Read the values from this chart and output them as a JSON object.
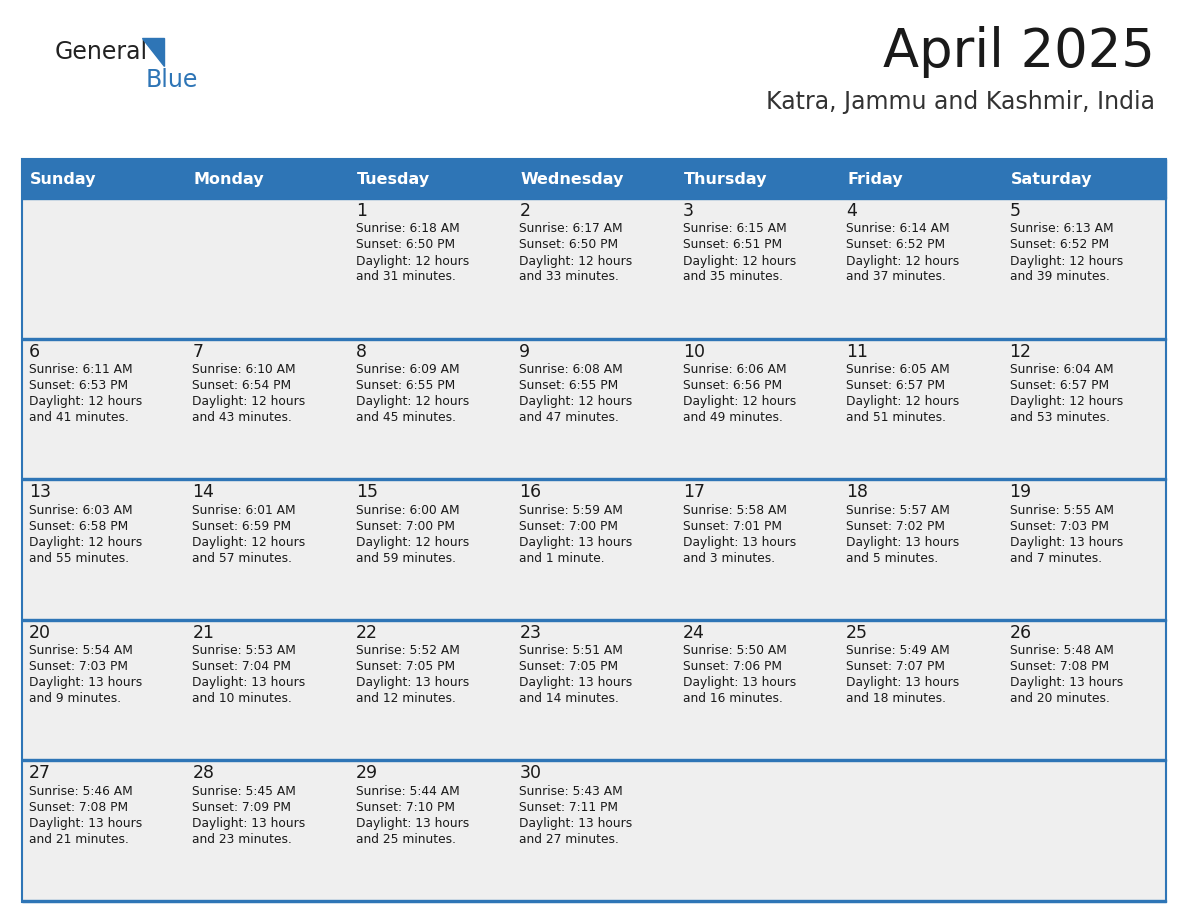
{
  "title": "April 2025",
  "subtitle": "Katra, Jammu and Kashmir, India",
  "header_color": "#2E75B6",
  "header_text_color": "#FFFFFF",
  "cell_bg_color": "#EFEFEF",
  "line_color": "#2E75B6",
  "text_color": "#1a1a1a",
  "days_of_week": [
    "Sunday",
    "Monday",
    "Tuesday",
    "Wednesday",
    "Thursday",
    "Friday",
    "Saturday"
  ],
  "weeks": [
    [
      {
        "day": "",
        "sunrise": "",
        "sunset": "",
        "daylight": ""
      },
      {
        "day": "",
        "sunrise": "",
        "sunset": "",
        "daylight": ""
      },
      {
        "day": "1",
        "sunrise": "Sunrise: 6:18 AM",
        "sunset": "Sunset: 6:50 PM",
        "daylight": "Daylight: 12 hours\nand 31 minutes."
      },
      {
        "day": "2",
        "sunrise": "Sunrise: 6:17 AM",
        "sunset": "Sunset: 6:50 PM",
        "daylight": "Daylight: 12 hours\nand 33 minutes."
      },
      {
        "day": "3",
        "sunrise": "Sunrise: 6:15 AM",
        "sunset": "Sunset: 6:51 PM",
        "daylight": "Daylight: 12 hours\nand 35 minutes."
      },
      {
        "day": "4",
        "sunrise": "Sunrise: 6:14 AM",
        "sunset": "Sunset: 6:52 PM",
        "daylight": "Daylight: 12 hours\nand 37 minutes."
      },
      {
        "day": "5",
        "sunrise": "Sunrise: 6:13 AM",
        "sunset": "Sunset: 6:52 PM",
        "daylight": "Daylight: 12 hours\nand 39 minutes."
      }
    ],
    [
      {
        "day": "6",
        "sunrise": "Sunrise: 6:11 AM",
        "sunset": "Sunset: 6:53 PM",
        "daylight": "Daylight: 12 hours\nand 41 minutes."
      },
      {
        "day": "7",
        "sunrise": "Sunrise: 6:10 AM",
        "sunset": "Sunset: 6:54 PM",
        "daylight": "Daylight: 12 hours\nand 43 minutes."
      },
      {
        "day": "8",
        "sunrise": "Sunrise: 6:09 AM",
        "sunset": "Sunset: 6:55 PM",
        "daylight": "Daylight: 12 hours\nand 45 minutes."
      },
      {
        "day": "9",
        "sunrise": "Sunrise: 6:08 AM",
        "sunset": "Sunset: 6:55 PM",
        "daylight": "Daylight: 12 hours\nand 47 minutes."
      },
      {
        "day": "10",
        "sunrise": "Sunrise: 6:06 AM",
        "sunset": "Sunset: 6:56 PM",
        "daylight": "Daylight: 12 hours\nand 49 minutes."
      },
      {
        "day": "11",
        "sunrise": "Sunrise: 6:05 AM",
        "sunset": "Sunset: 6:57 PM",
        "daylight": "Daylight: 12 hours\nand 51 minutes."
      },
      {
        "day": "12",
        "sunrise": "Sunrise: 6:04 AM",
        "sunset": "Sunset: 6:57 PM",
        "daylight": "Daylight: 12 hours\nand 53 minutes."
      }
    ],
    [
      {
        "day": "13",
        "sunrise": "Sunrise: 6:03 AM",
        "sunset": "Sunset: 6:58 PM",
        "daylight": "Daylight: 12 hours\nand 55 minutes."
      },
      {
        "day": "14",
        "sunrise": "Sunrise: 6:01 AM",
        "sunset": "Sunset: 6:59 PM",
        "daylight": "Daylight: 12 hours\nand 57 minutes."
      },
      {
        "day": "15",
        "sunrise": "Sunrise: 6:00 AM",
        "sunset": "Sunset: 7:00 PM",
        "daylight": "Daylight: 12 hours\nand 59 minutes."
      },
      {
        "day": "16",
        "sunrise": "Sunrise: 5:59 AM",
        "sunset": "Sunset: 7:00 PM",
        "daylight": "Daylight: 13 hours\nand 1 minute."
      },
      {
        "day": "17",
        "sunrise": "Sunrise: 5:58 AM",
        "sunset": "Sunset: 7:01 PM",
        "daylight": "Daylight: 13 hours\nand 3 minutes."
      },
      {
        "day": "18",
        "sunrise": "Sunrise: 5:57 AM",
        "sunset": "Sunset: 7:02 PM",
        "daylight": "Daylight: 13 hours\nand 5 minutes."
      },
      {
        "day": "19",
        "sunrise": "Sunrise: 5:55 AM",
        "sunset": "Sunset: 7:03 PM",
        "daylight": "Daylight: 13 hours\nand 7 minutes."
      }
    ],
    [
      {
        "day": "20",
        "sunrise": "Sunrise: 5:54 AM",
        "sunset": "Sunset: 7:03 PM",
        "daylight": "Daylight: 13 hours\nand 9 minutes."
      },
      {
        "day": "21",
        "sunrise": "Sunrise: 5:53 AM",
        "sunset": "Sunset: 7:04 PM",
        "daylight": "Daylight: 13 hours\nand 10 minutes."
      },
      {
        "day": "22",
        "sunrise": "Sunrise: 5:52 AM",
        "sunset": "Sunset: 7:05 PM",
        "daylight": "Daylight: 13 hours\nand 12 minutes."
      },
      {
        "day": "23",
        "sunrise": "Sunrise: 5:51 AM",
        "sunset": "Sunset: 7:05 PM",
        "daylight": "Daylight: 13 hours\nand 14 minutes."
      },
      {
        "day": "24",
        "sunrise": "Sunrise: 5:50 AM",
        "sunset": "Sunset: 7:06 PM",
        "daylight": "Daylight: 13 hours\nand 16 minutes."
      },
      {
        "day": "25",
        "sunrise": "Sunrise: 5:49 AM",
        "sunset": "Sunset: 7:07 PM",
        "daylight": "Daylight: 13 hours\nand 18 minutes."
      },
      {
        "day": "26",
        "sunrise": "Sunrise: 5:48 AM",
        "sunset": "Sunset: 7:08 PM",
        "daylight": "Daylight: 13 hours\nand 20 minutes."
      }
    ],
    [
      {
        "day": "27",
        "sunrise": "Sunrise: 5:46 AM",
        "sunset": "Sunset: 7:08 PM",
        "daylight": "Daylight: 13 hours\nand 21 minutes."
      },
      {
        "day": "28",
        "sunrise": "Sunrise: 5:45 AM",
        "sunset": "Sunset: 7:09 PM",
        "daylight": "Daylight: 13 hours\nand 23 minutes."
      },
      {
        "day": "29",
        "sunrise": "Sunrise: 5:44 AM",
        "sunset": "Sunset: 7:10 PM",
        "daylight": "Daylight: 13 hours\nand 25 minutes."
      },
      {
        "day": "30",
        "sunrise": "Sunrise: 5:43 AM",
        "sunset": "Sunset: 7:11 PM",
        "daylight": "Daylight: 13 hours\nand 27 minutes."
      },
      {
        "day": "",
        "sunrise": "",
        "sunset": "",
        "daylight": ""
      },
      {
        "day": "",
        "sunrise": "",
        "sunset": "",
        "daylight": ""
      },
      {
        "day": "",
        "sunrise": "",
        "sunset": "",
        "daylight": ""
      }
    ]
  ]
}
